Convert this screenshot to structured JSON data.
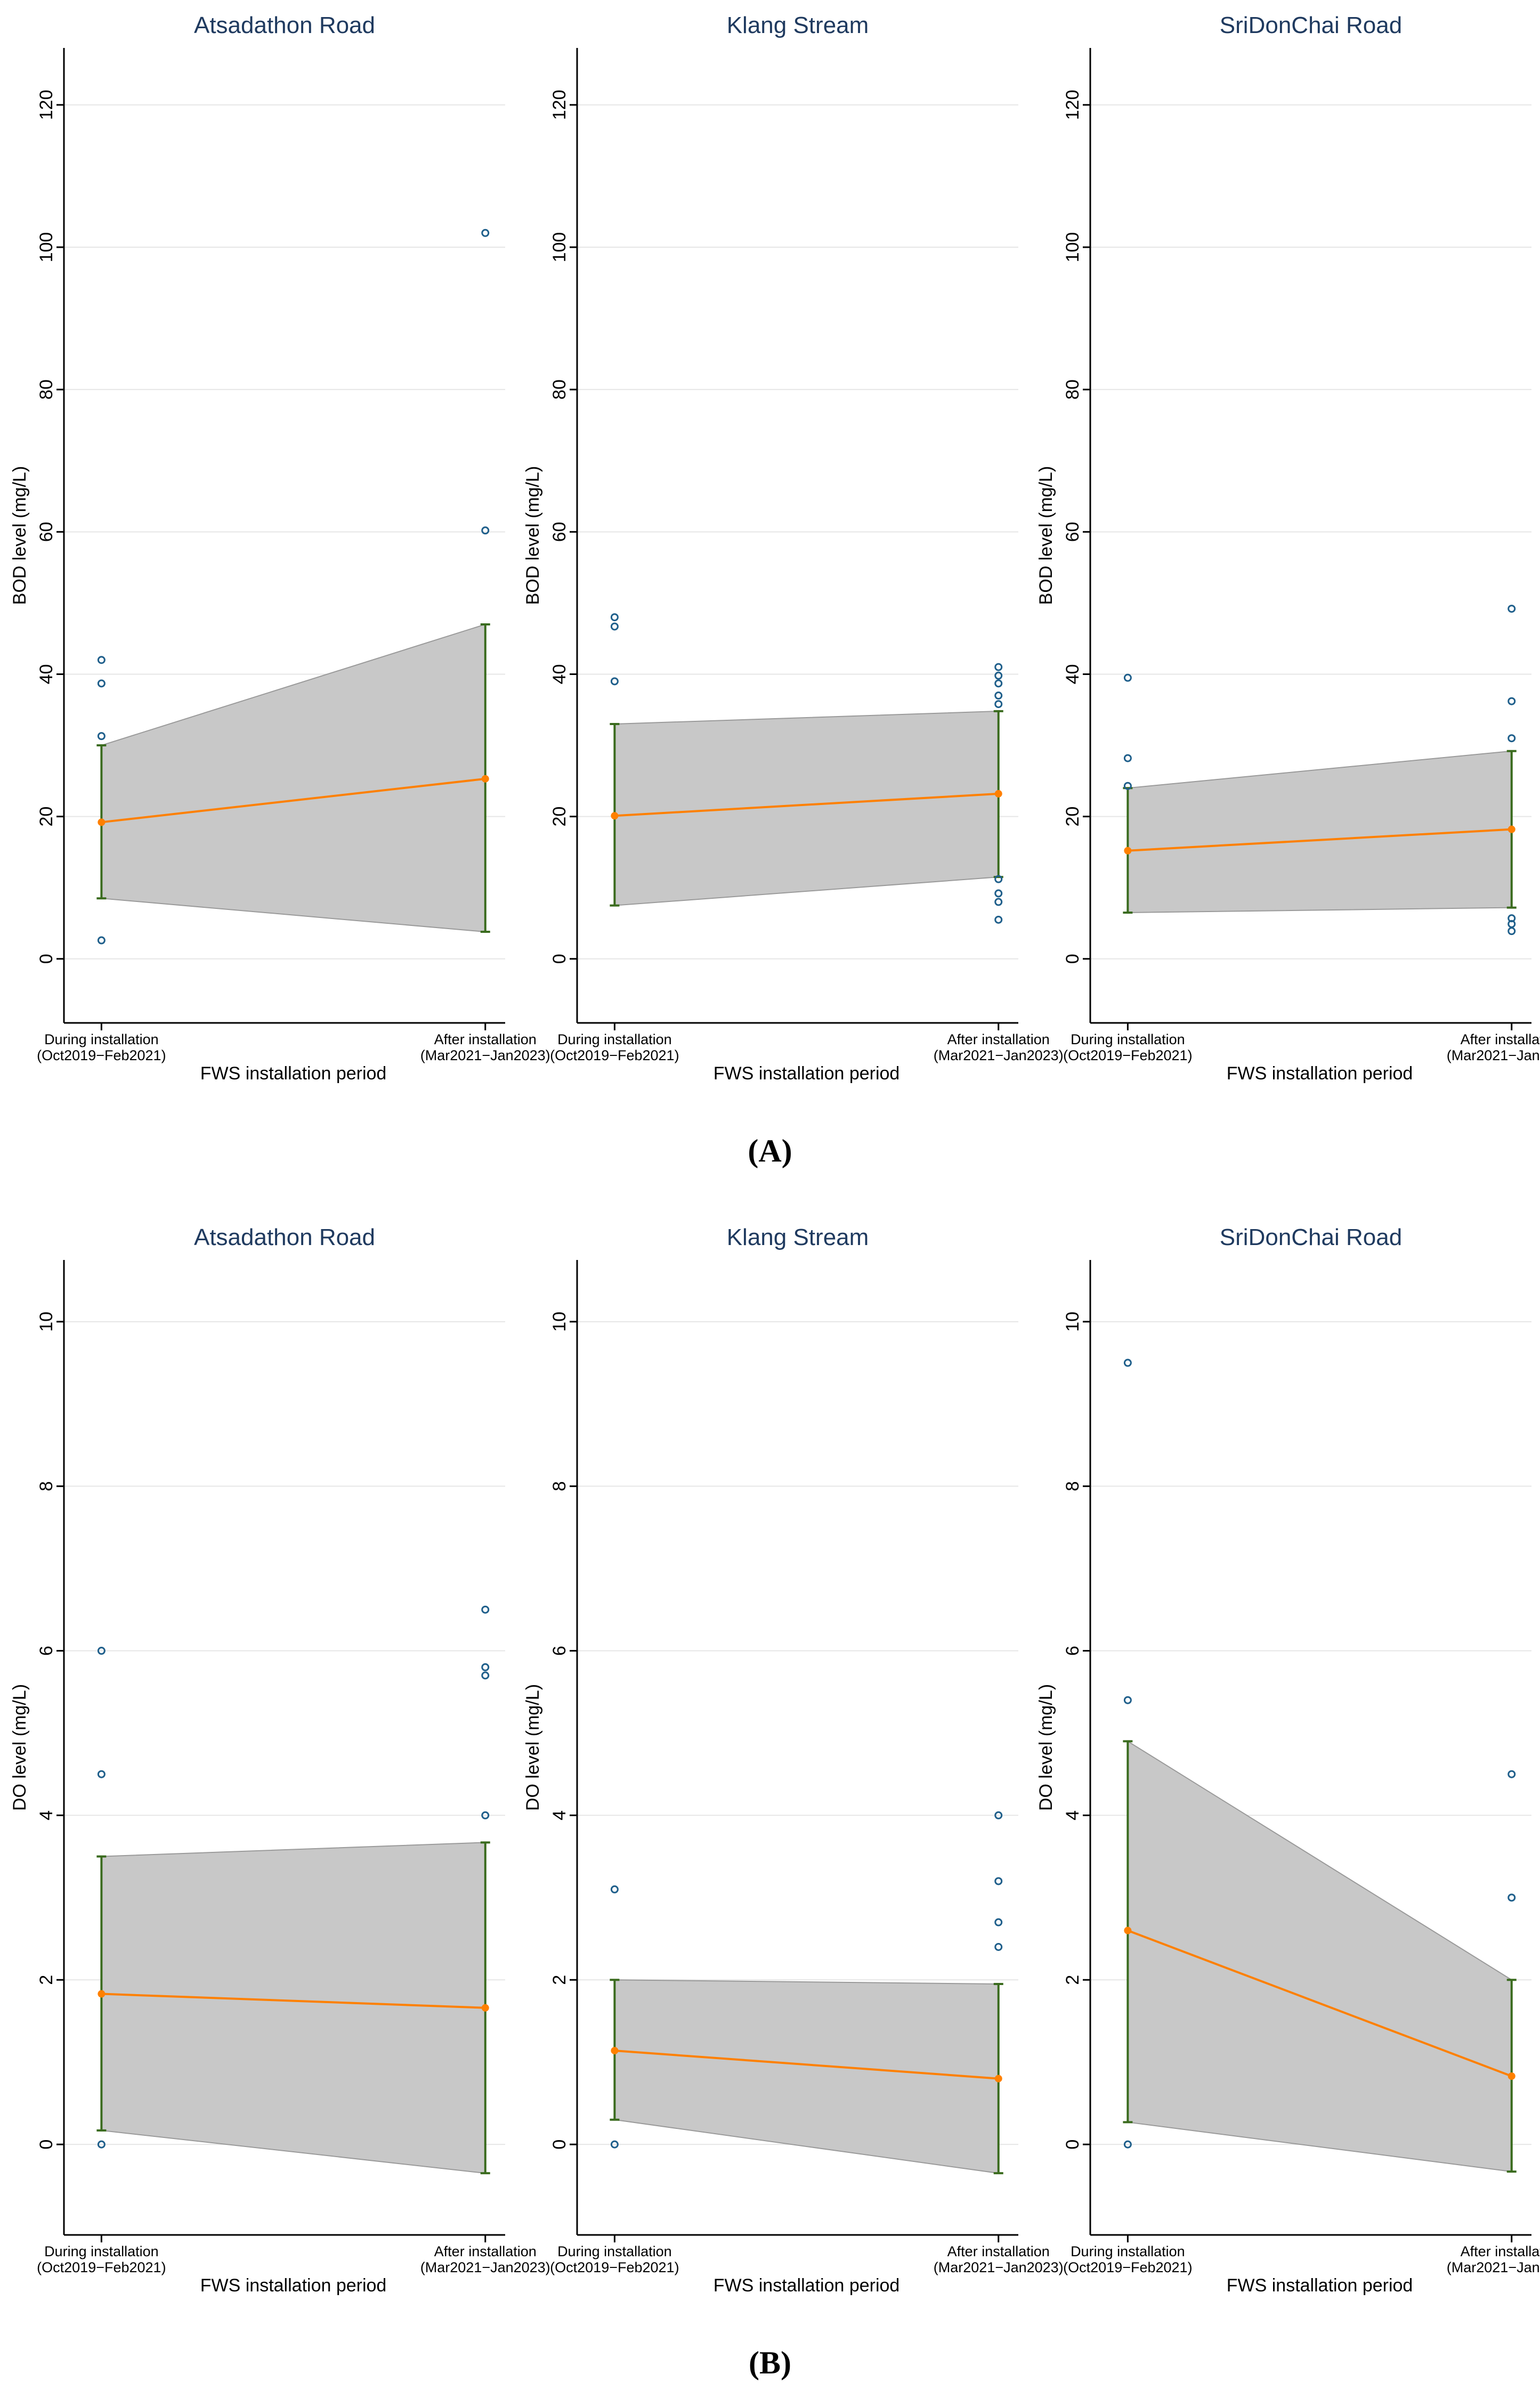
{
  "figure": {
    "colors": {
      "title": "#1f3a5f",
      "axis": "#000000",
      "grid": "#e6e6e6",
      "band": "#c8c8c8",
      "band_stroke": "#9a9a9a",
      "line": "#ff8000",
      "errorbar": "#3a6b1e",
      "points": "#1f5f8b"
    }
  },
  "chart_data": [
    {
      "panel": "(A)",
      "type": "line",
      "ylabel": "BOD level (mg/L)",
      "xlabel": "FWS installation period",
      "categories": [
        [
          "During installation",
          "(Oct2019−Feb2021)"
        ],
        [
          "After installation",
          "(Mar2021−Jan2023)"
        ]
      ],
      "ylim": [
        -9,
        128
      ],
      "yticks": [
        0,
        20,
        40,
        60,
        80,
        100,
        120
      ],
      "subplots": [
        {
          "title": "Atsadathon Road",
          "mean": [
            19.2,
            25.3
          ],
          "ci_low": [
            8.5,
            3.8
          ],
          "ci_high": [
            30.0,
            47.0
          ],
          "outliers": [
            [
              42.0,
              38.7,
              31.3,
              2.6
            ],
            [
              102.0,
              60.2
            ]
          ]
        },
        {
          "title": "Klang Stream",
          "mean": [
            20.1,
            23.2
          ],
          "ci_low": [
            7.5,
            11.5
          ],
          "ci_high": [
            33.0,
            34.8
          ],
          "outliers": [
            [
              48.0,
              46.7,
              39.0
            ],
            [
              41.0,
              39.8,
              38.7,
              37.0,
              35.8,
              11.2,
              9.2,
              8.0,
              5.5
            ]
          ]
        },
        {
          "title": "SriDonChai Road",
          "mean": [
            15.2,
            18.2
          ],
          "ci_low": [
            6.5,
            7.2
          ],
          "ci_high": [
            24.0,
            29.2
          ],
          "outliers": [
            [
              39.5,
              28.2,
              24.3
            ],
            [
              49.2,
              36.2,
              31.0,
              5.7,
              4.9,
              3.9
            ]
          ]
        }
      ]
    },
    {
      "panel": "(B)",
      "type": "line",
      "ylabel": "DO level (mg/L)",
      "xlabel": "FWS installation period",
      "categories": [
        [
          "During installation",
          "(Oct2019−Feb2021)"
        ],
        [
          "After installation",
          "(Mar2021−Jan2023)"
        ]
      ],
      "ylim": [
        -1.1,
        10.75
      ],
      "yticks": [
        0,
        2,
        4,
        6,
        8,
        10
      ],
      "subplots": [
        {
          "title": "Atsadathon Road",
          "mean": [
            1.83,
            1.66
          ],
          "ci_low": [
            0.17,
            -0.35
          ],
          "ci_high": [
            3.5,
            3.67
          ],
          "outliers": [
            [
              6.0,
              4.5,
              0.0
            ],
            [
              6.5,
              5.8,
              5.7,
              4.0
            ]
          ]
        },
        {
          "title": "Klang Stream",
          "mean": [
            1.14,
            0.8
          ],
          "ci_low": [
            0.3,
            -0.35
          ],
          "ci_high": [
            2.0,
            1.95
          ],
          "outliers": [
            [
              3.1,
              0.0
            ],
            [
              4.0,
              3.2,
              2.7,
              2.4
            ]
          ]
        },
        {
          "title": "SriDonChai Road",
          "mean": [
            2.6,
            0.83
          ],
          "ci_low": [
            0.27,
            -0.33
          ],
          "ci_high": [
            4.9,
            2.0
          ],
          "outliers": [
            [
              9.5,
              5.4,
              0.0
            ],
            [
              4.5,
              3.0
            ]
          ]
        }
      ]
    }
  ]
}
